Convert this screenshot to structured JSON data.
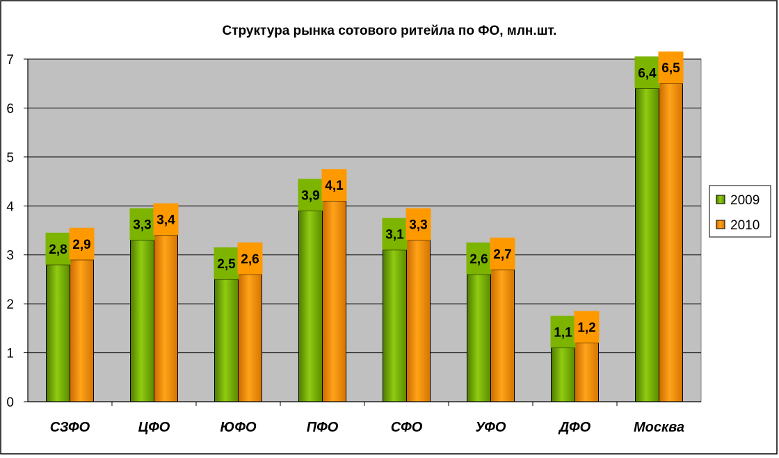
{
  "chart_data": {
    "type": "bar",
    "title": "Структура рынка сотового ритейла по ФО, млн.шт.",
    "categories": [
      "СЗФО",
      "ЦФО",
      "ЮФО",
      "ПФО",
      "СФО",
      "УФО",
      "ДФО",
      "Москва"
    ],
    "series": [
      {
        "name": "2009",
        "color": "#7cb400",
        "values": [
          2.8,
          3.3,
          2.5,
          3.9,
          3.1,
          2.6,
          1.1,
          6.4
        ],
        "labels": [
          "2,8",
          "3,3",
          "2,5",
          "3,9",
          "3,1",
          "2,6",
          "1,1",
          "6,4"
        ]
      },
      {
        "name": "2010",
        "color": "#ff9900",
        "values": [
          2.9,
          3.4,
          2.6,
          4.1,
          3.3,
          2.7,
          1.2,
          6.5
        ],
        "labels": [
          "2,9",
          "3,4",
          "2,6",
          "4,1",
          "3,3",
          "2,7",
          "1,2",
          "6,5"
        ]
      }
    ],
    "yticks": [
      "0",
      "1",
      "2",
      "3",
      "4",
      "5",
      "6",
      "7"
    ],
    "ylim": [
      0,
      7
    ],
    "grid": true,
    "legend_position": "right",
    "plot_background": "#c0c0c0"
  }
}
